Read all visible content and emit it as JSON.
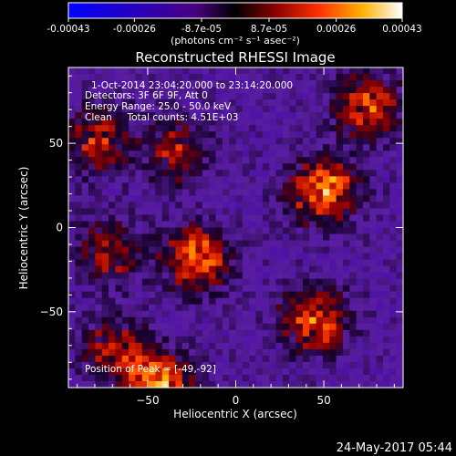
{
  "chart_data": {
    "type": "heatmap",
    "title": "Reconstructed RHESSI Image",
    "xlabel": "Heliocentric X (arcsec)",
    "ylabel": "Heliocentric Y (arcsec)",
    "xlim": [
      -95,
      95
    ],
    "ylim": [
      -95,
      95
    ],
    "x_ticks": [
      -50,
      0,
      50
    ],
    "y_ticks": [
      -50,
      0,
      50
    ],
    "colorbar": {
      "ticks": [
        "-0.00043",
        "-0.00026",
        "-8.7e-05",
        "8.7e-05",
        "0.00026",
        "0.00043"
      ],
      "tick_values": [
        -0.00043,
        -0.00026,
        -8.7e-05,
        8.7e-05,
        0.00026,
        0.00043
      ],
      "range": [
        -0.00043,
        0.00043
      ],
      "unit_label": "(photons cm⁻² s⁻¹ asec⁻²)"
    },
    "annotations": [
      "1-Oct-2014 23:04:20.000 to 23:14:20.000",
      "Detectors: 3F 6F 9F, Att 0",
      "Energy Range: 25.0 - 50.0 keV",
      "Clean     Total counts: 4.51E+03"
    ],
    "peak_label": "Position of Peak = [-49,-92]",
    "peak": [
      -49,
      -92
    ],
    "source_blobs": [
      {
        "x": -78,
        "y": 52,
        "strength": 0.00026
      },
      {
        "x": -33,
        "y": 45,
        "strength": 0.00022
      },
      {
        "x": -22,
        "y": -18,
        "strength": 0.00036
      },
      {
        "x": -72,
        "y": -15,
        "strength": 0.00022
      },
      {
        "x": 50,
        "y": 22,
        "strength": 0.00041
      },
      {
        "x": 75,
        "y": 72,
        "strength": 0.00029
      },
      {
        "x": 45,
        "y": -55,
        "strength": 0.00033
      },
      {
        "x": -68,
        "y": -72,
        "strength": 0.00024
      },
      {
        "x": -44,
        "y": -92,
        "strength": 0.00038
      }
    ]
  },
  "footer": {
    "timestamp": "24-May-2017 05:44"
  }
}
